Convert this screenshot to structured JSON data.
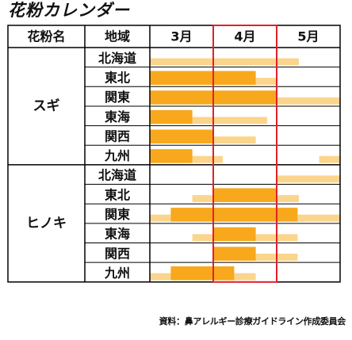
{
  "title": "花粉カレンダー",
  "source": "資料：鼻アレルギー診療ガイドライン作成委員会",
  "colors": {
    "peak": "#f7a81c",
    "light": "#fbd58c",
    "grid": "#000000",
    "highlight": "#e0212a"
  },
  "chart_data": {
    "type": "gantt",
    "title": "花粉カレンダー",
    "headers": {
      "pollen": "花粉名",
      "region": "地域"
    },
    "months": [
      "3月",
      "4月",
      "5月"
    ],
    "highlight_month": "4月",
    "x_unit": "month (3.0 = start of March, 6.0 = end of May)",
    "xlim": [
      3.0,
      6.0
    ],
    "groups": [
      {
        "pollen": "スギ",
        "rows": [
          {
            "region": "北海道",
            "light": [
              [
                3.0,
                5.35
              ]
            ],
            "peak": []
          },
          {
            "region": "東北",
            "light": [
              [
                4.67,
                5.0
              ]
            ],
            "peak": [
              [
                3.0,
                4.67
              ]
            ]
          },
          {
            "region": "関東",
            "light": [
              [
                5.0,
                6.0
              ]
            ],
            "peak": [
              [
                3.0,
                5.0
              ]
            ]
          },
          {
            "region": "東海",
            "light": [
              [
                3.67,
                4.85
              ]
            ],
            "peak": [
              [
                3.0,
                3.67
              ]
            ]
          },
          {
            "region": "関西",
            "light": [
              [
                4.0,
                4.67
              ]
            ],
            "peak": [
              [
                3.0,
                4.0
              ]
            ]
          },
          {
            "region": "九州",
            "light": [
              [
                3.67,
                4.15
              ],
              [
                5.67,
                6.0
              ]
            ],
            "peak": [
              [
                3.0,
                3.67
              ]
            ]
          }
        ]
      },
      {
        "pollen": "ヒノキ",
        "rows": [
          {
            "region": "北海道",
            "light": [
              [
                5.0,
                6.0
              ]
            ],
            "peak": []
          },
          {
            "region": "東北",
            "light": [
              [
                3.67,
                4.0
              ],
              [
                5.0,
                5.35
              ]
            ],
            "peak": [
              [
                4.0,
                5.0
              ]
            ]
          },
          {
            "region": "関東",
            "light": [
              [
                3.0,
                3.33
              ],
              [
                5.33,
                6.0
              ]
            ],
            "peak": [
              [
                3.33,
                5.33
              ]
            ]
          },
          {
            "region": "東海",
            "light": [
              [
                3.67,
                4.0
              ],
              [
                4.67,
                5.33
              ]
            ],
            "peak": [
              [
                4.0,
                4.67
              ]
            ]
          },
          {
            "region": "関西",
            "light": [
              [
                4.67,
                5.33
              ]
            ],
            "peak": [
              [
                4.0,
                4.67
              ]
            ]
          },
          {
            "region": "九州",
            "light": [
              [
                3.0,
                3.33
              ],
              [
                4.33,
                4.67
              ]
            ],
            "peak": [
              [
                3.33,
                4.33
              ]
            ]
          }
        ]
      }
    ]
  }
}
